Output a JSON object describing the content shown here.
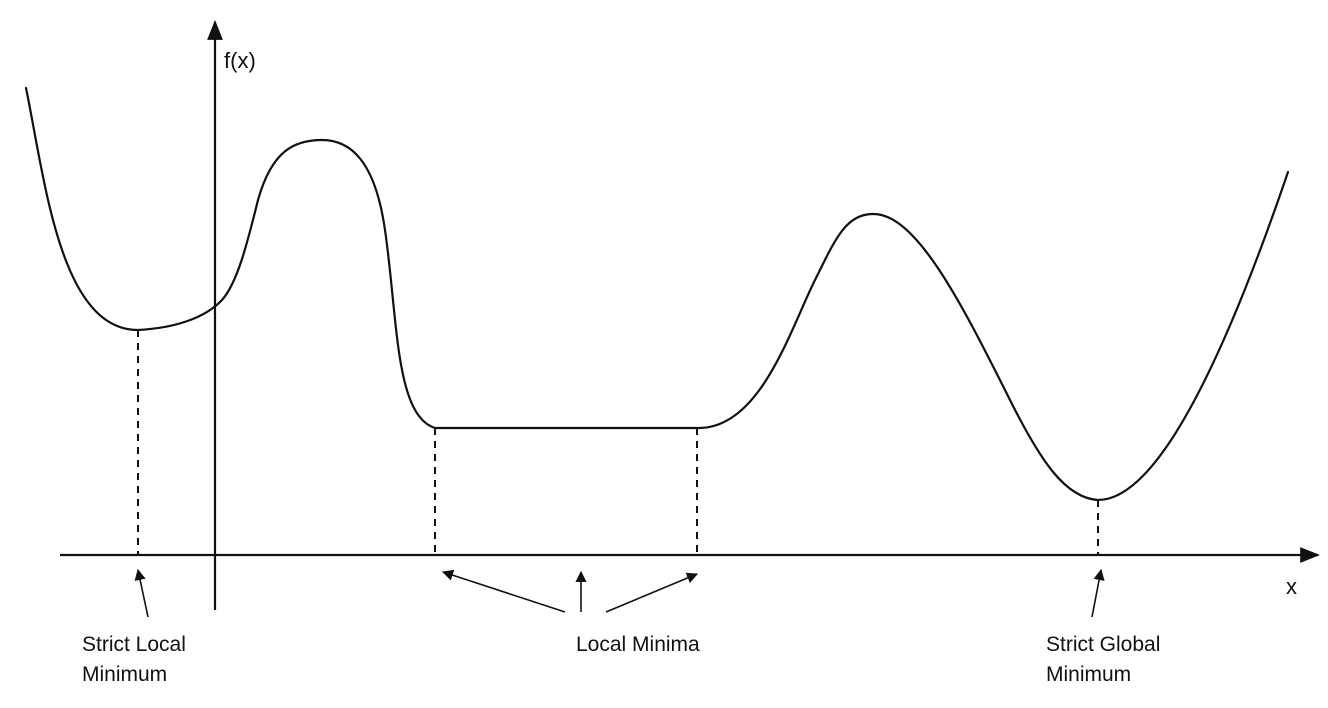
{
  "axes": {
    "y_label": "f(x)",
    "x_label": "x"
  },
  "annotations": {
    "strict_local": {
      "line1": "Strict Local",
      "line2": "Minimum"
    },
    "local_minima": {
      "text": "Local Minima"
    },
    "strict_global": {
      "line1": "Strict Global",
      "line2": "Minimum"
    }
  },
  "colors": {
    "ink": "#111111",
    "background": "#ffffff"
  }
}
